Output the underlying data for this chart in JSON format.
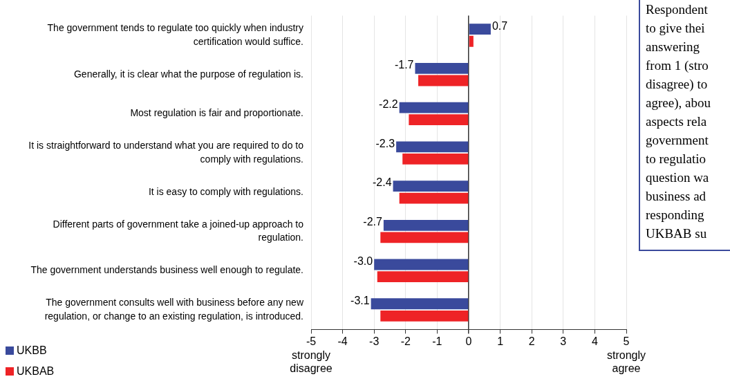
{
  "chart_data": {
    "type": "bar",
    "orientation": "horizontal",
    "categories": [
      "The government tends to regulate too quickly when industry certification would suffice.",
      "Generally, it is clear what the purpose of regulation is.",
      "Most regulation is fair and proportionate.",
      "It is straightforward to understand what you are required to do to comply with regulations.",
      "It is easy to comply with regulations.",
      "Different parts of government take a joined-up approach to regulation.",
      "The government understands business well enough to regulate.",
      "The government consults well with business before any new regulation, or change to an existing regulation, is introduced."
    ],
    "series": [
      {
        "name": "UKBB",
        "color": "#3a4a9c",
        "values": [
          0.7,
          -1.7,
          -2.2,
          -2.3,
          -2.4,
          -2.7,
          -3.0,
          -3.1
        ],
        "value_labels": [
          "0.7",
          "-1.7",
          "-2.2",
          "-2.3",
          "-2.4",
          "-2.7",
          "-3.0",
          "-3.1"
        ]
      },
      {
        "name": "UKBAB",
        "color": "#ee2326",
        "values": [
          0.15,
          -1.6,
          -1.9,
          -2.1,
          -2.2,
          -2.8,
          -2.9,
          -2.8
        ]
      }
    ],
    "xlim": [
      -5,
      5
    ],
    "xticks": [
      {
        "value": -5,
        "label": "-5\nstrongly\ndisagree"
      },
      -4,
      -3,
      -2,
      -1,
      0,
      1,
      2,
      3,
      4,
      {
        "value": 5,
        "label": "5\nstrongly\nagree"
      }
    ],
    "grid": "x",
    "legend": "bottom left",
    "annotations": [
      "Respondent\nto give thei\nanswering\nfrom 1 (stro\ndisagree) to\nagree), abou\naspects rela\ngovernment\nto regulatio\nquestion wa\nbusiness ad\nresponding\nUKBAB su"
    ]
  }
}
